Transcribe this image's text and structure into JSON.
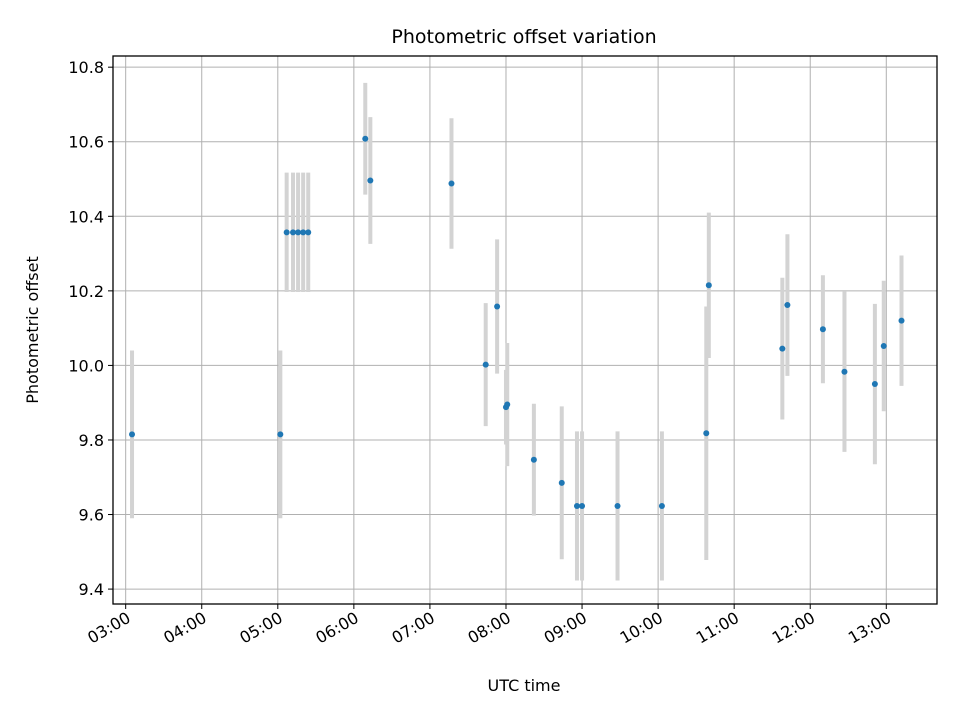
{
  "chart_data": {
    "type": "scatter",
    "title": "Photometric offset variation",
    "xlabel": "UTC time",
    "ylabel": "Photometric offset",
    "x_ticks": [
      "03:00",
      "04:00",
      "05:00",
      "06:00",
      "07:00",
      "08:00",
      "09:00",
      "10:00",
      "11:00",
      "12:00",
      "13:00"
    ],
    "y_ticks": [
      "9.4",
      "9.6",
      "9.8",
      "10.0",
      "10.2",
      "10.4",
      "10.6",
      "10.8"
    ],
    "xlim": [
      "02:50",
      "13:40"
    ],
    "ylim": [
      9.36,
      10.83
    ],
    "grid": true,
    "marker_color": "#1f77b4",
    "errorbar_color": "#d3d3d3",
    "series": [
      {
        "points": [
          {
            "x": "03:05",
            "y": 9.815,
            "err": 0.225
          },
          {
            "x": "05:02",
            "y": 9.815,
            "err": 0.225
          },
          {
            "x": "05:07",
            "y": 10.357,
            "err": 0.16
          },
          {
            "x": "05:12",
            "y": 10.357,
            "err": 0.16
          },
          {
            "x": "05:16",
            "y": 10.357,
            "err": 0.16
          },
          {
            "x": "05:20",
            "y": 10.357,
            "err": 0.16
          },
          {
            "x": "05:24",
            "y": 10.357,
            "err": 0.16
          },
          {
            "x": "06:09",
            "y": 10.608,
            "err": 0.15
          },
          {
            "x": "06:13",
            "y": 10.496,
            "err": 0.17
          },
          {
            "x": "07:17",
            "y": 10.488,
            "err": 0.175
          },
          {
            "x": "07:44",
            "y": 10.002,
            "err": 0.165
          },
          {
            "x": "07:53",
            "y": 10.158,
            "err": 0.18
          },
          {
            "x": "08:00",
            "y": 9.888,
            "err": 0.1
          },
          {
            "x": "08:01",
            "y": 9.895,
            "err": 0.165
          },
          {
            "x": "08:22",
            "y": 9.747,
            "err": 0.15
          },
          {
            "x": "08:44",
            "y": 9.685,
            "err": 0.205
          },
          {
            "x": "08:56",
            "y": 9.623,
            "err": 0.2
          },
          {
            "x": "09:00",
            "y": 9.623,
            "err": 0.2
          },
          {
            "x": "09:28",
            "y": 9.623,
            "err": 0.2
          },
          {
            "x": "10:03",
            "y": 9.623,
            "err": 0.2
          },
          {
            "x": "10:38",
            "y": 9.818,
            "err": 0.34
          },
          {
            "x": "10:40",
            "y": 10.215,
            "err": 0.195
          },
          {
            "x": "11:38",
            "y": 10.045,
            "err": 0.19
          },
          {
            "x": "11:42",
            "y": 10.162,
            "err": 0.19
          },
          {
            "x": "12:10",
            "y": 10.097,
            "err": 0.145
          },
          {
            "x": "12:27",
            "y": 9.983,
            "err": 0.215
          },
          {
            "x": "12:51",
            "y": 9.95,
            "err": 0.215
          },
          {
            "x": "12:58",
            "y": 10.052,
            "err": 0.175
          },
          {
            "x": "13:12",
            "y": 10.12,
            "err": 0.175
          }
        ]
      }
    ]
  }
}
